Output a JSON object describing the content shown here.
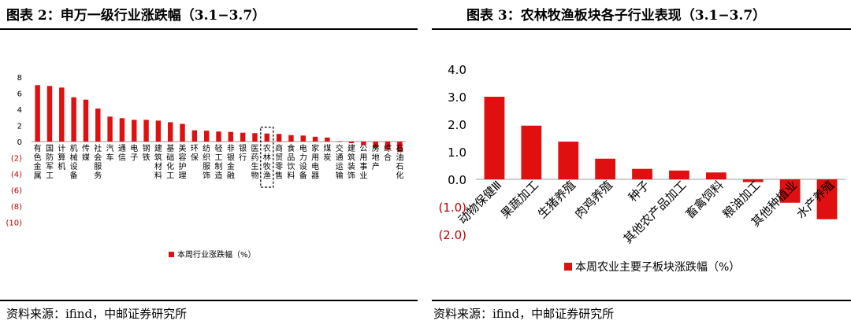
{
  "left": {
    "title": "图表 2：申万一级行业涨跌幅（3.1−3.7）",
    "source": "资料来源：ifind，中邮证券研究所",
    "chart_data": {
      "type": "bar",
      "categories": [
        "有色金属",
        "国防军工",
        "计算机",
        "机械设备",
        "传媒",
        "社会服务",
        "汽车",
        "通信",
        "电子",
        "钢铁",
        "建筑材料",
        "基础化工",
        "美容护理",
        "环保",
        "纺织服饰",
        "轻工制造",
        "非银金融",
        "银行",
        "医药生物",
        "农林牧渔",
        "商贸零售",
        "食品饮料",
        "电力设备",
        "家用电器",
        "煤炭",
        "交通运输",
        "建筑装饰",
        "公用事业",
        "房地产",
        "综合",
        "石油石化"
      ],
      "series": [
        {
          "name": "本周行业涨跌幅（%）",
          "values": [
            7.0,
            6.9,
            6.7,
            5.5,
            5.2,
            4.1,
            3.1,
            2.9,
            2.7,
            2.7,
            2.6,
            2.4,
            2.2,
            1.4,
            1.35,
            1.25,
            1.2,
            1.1,
            1.05,
            1.0,
            0.95,
            0.8,
            0.75,
            0.6,
            0.5,
            0.05,
            -0.2,
            -0.45,
            -0.8,
            -1.0,
            -1.3
          ]
        }
      ],
      "ylim": [
        -10,
        8
      ],
      "yticks": [
        "8",
        "6",
        "4",
        "2",
        "0",
        "(2)",
        "(4)",
        "(6)",
        "(8)",
        "(10)"
      ],
      "highlight": "农林牧渔",
      "legend_position": "bottom",
      "bar_color": "#e01010",
      "grid": false
    }
  },
  "right": {
    "title": "图表 3：农林牧渔板块各子行业表现（3.1−3.7）",
    "source": "资料来源：ifind，中邮证券研究所",
    "chart_data": {
      "type": "bar",
      "categories": [
        "动物保健Ⅲ",
        "果蔬加工",
        "生猪养殖",
        "肉鸡养殖",
        "种子",
        "其他农产品加工",
        "畜禽饲料",
        "粮油加工",
        "其他种植业",
        "水产养殖"
      ],
      "series": [
        {
          "name": "本周农业主要子板块涨跌幅（%）",
          "values": [
            3.0,
            1.95,
            1.37,
            0.75,
            0.38,
            0.32,
            0.25,
            -0.1,
            -0.85,
            -1.45
          ]
        }
      ],
      "ylim": [
        -2.0,
        4.0
      ],
      "yticks": [
        "4.0",
        "3.0",
        "2.0",
        "1.0",
        "0.0",
        "(1.0)",
        "(2.0)"
      ],
      "legend_position": "bottom",
      "bar_color": "#e01010",
      "grid": false
    }
  }
}
